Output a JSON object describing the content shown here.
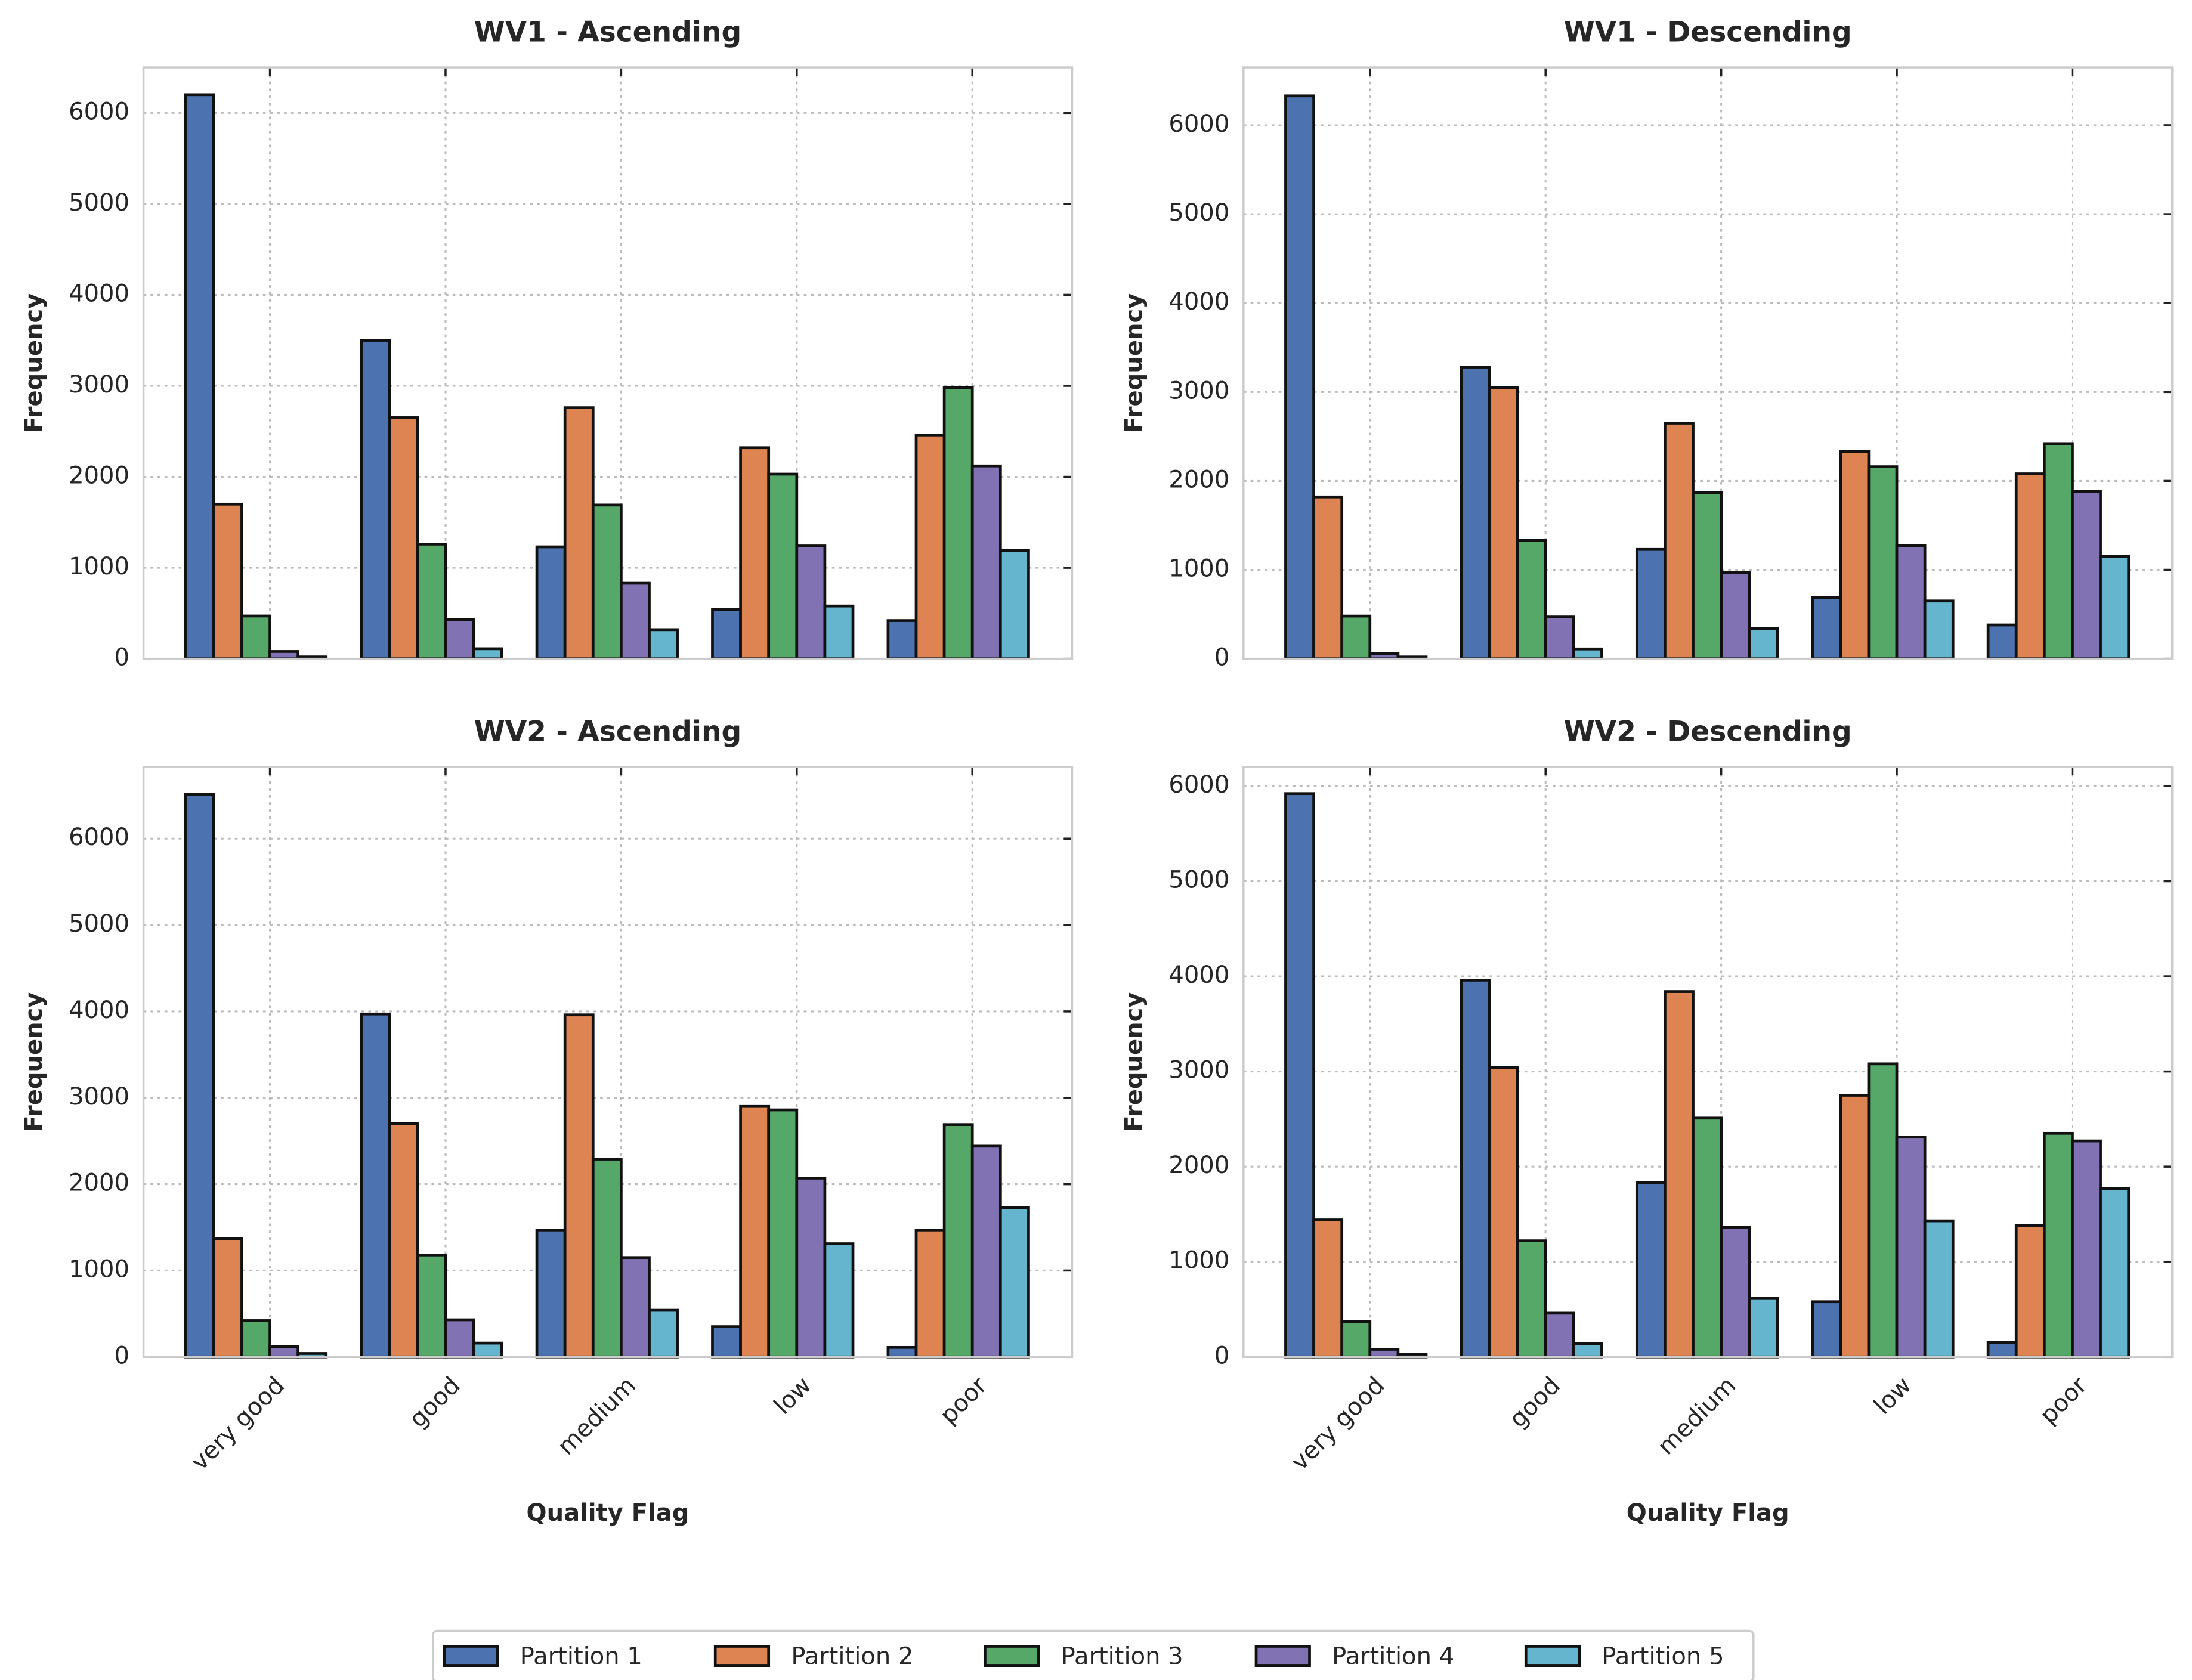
{
  "chart_data": [
    {
      "type": "bar",
      "title": "WV1 - Ascending",
      "y_label": "Frequency",
      "ylim": [
        0,
        6500
      ],
      "yticks": [
        0,
        1000,
        2000,
        3000,
        4000,
        5000,
        6000
      ],
      "grid": true,
      "series": [
        {
          "name": "Partition 1",
          "color": "#4c72b0",
          "values": [
            6200,
            3500,
            1230,
            540,
            420
          ]
        },
        {
          "name": "Partition 2",
          "color": "#dd8452",
          "values": [
            1700,
            2650,
            2760,
            2320,
            2460
          ]
        },
        {
          "name": "Partition 3",
          "color": "#55a868",
          "values": [
            470,
            1260,
            1690,
            2030,
            2980
          ]
        },
        {
          "name": "Partition 4",
          "color": "#8172b3",
          "values": [
            80,
            430,
            830,
            1240,
            2120
          ]
        },
        {
          "name": "Partition 5",
          "color": "#64b5cd",
          "values": [
            20,
            110,
            320,
            580,
            1190
          ]
        }
      ]
    },
    {
      "type": "bar",
      "title": "WV1 - Descending",
      "y_label": "Frequency",
      "ylim": [
        0,
        6650
      ],
      "yticks": [
        0,
        1000,
        2000,
        3000,
        4000,
        5000,
        6000
      ],
      "grid": true,
      "series": [
        {
          "name": "Partition 1",
          "color": "#4c72b0",
          "values": [
            6330,
            3280,
            1230,
            690,
            380
          ]
        },
        {
          "name": "Partition 2",
          "color": "#dd8452",
          "values": [
            1820,
            3050,
            2650,
            2330,
            2080
          ]
        },
        {
          "name": "Partition 3",
          "color": "#55a868",
          "values": [
            480,
            1330,
            1870,
            2160,
            2420
          ]
        },
        {
          "name": "Partition 4",
          "color": "#8172b3",
          "values": [
            60,
            470,
            970,
            1270,
            1880
          ]
        },
        {
          "name": "Partition 5",
          "color": "#64b5cd",
          "values": [
            20,
            110,
            340,
            650,
            1150
          ]
        }
      ]
    },
    {
      "type": "bar",
      "title": "WV2 - Ascending",
      "y_label": "Frequency",
      "x_label": "Quality Flag",
      "ylim": [
        0,
        6830
      ],
      "yticks": [
        0,
        1000,
        2000,
        3000,
        4000,
        5000,
        6000
      ],
      "grid": true,
      "categories": [
        "very good",
        "good",
        "medium",
        "low",
        "poor"
      ],
      "series": [
        {
          "name": "Partition 1",
          "color": "#4c72b0",
          "values": [
            6510,
            3970,
            1470,
            350,
            110
          ]
        },
        {
          "name": "Partition 2",
          "color": "#dd8452",
          "values": [
            1370,
            2700,
            3960,
            2900,
            1470
          ]
        },
        {
          "name": "Partition 3",
          "color": "#55a868",
          "values": [
            420,
            1180,
            2290,
            2860,
            2690
          ]
        },
        {
          "name": "Partition 4",
          "color": "#8172b3",
          "values": [
            120,
            430,
            1150,
            2070,
            2440
          ]
        },
        {
          "name": "Partition 5",
          "color": "#64b5cd",
          "values": [
            40,
            160,
            540,
            1310,
            1730
          ]
        }
      ]
    },
    {
      "type": "bar",
      "title": "WV2 - Descending",
      "y_label": "Frequency",
      "x_label": "Quality Flag",
      "ylim": [
        0,
        6200
      ],
      "yticks": [
        0,
        1000,
        2000,
        3000,
        4000,
        5000,
        6000
      ],
      "grid": true,
      "categories": [
        "very good",
        "good",
        "medium",
        "low",
        "poor"
      ],
      "series": [
        {
          "name": "Partition 1",
          "color": "#4c72b0",
          "values": [
            5920,
            3960,
            1830,
            580,
            150
          ]
        },
        {
          "name": "Partition 2",
          "color": "#dd8452",
          "values": [
            1440,
            3040,
            3840,
            2750,
            1380
          ]
        },
        {
          "name": "Partition 3",
          "color": "#55a868",
          "values": [
            370,
            1220,
            2510,
            3080,
            2350
          ]
        },
        {
          "name": "Partition 4",
          "color": "#8172b3",
          "values": [
            80,
            460,
            1360,
            2310,
            2270
          ]
        },
        {
          "name": "Partition 5",
          "color": "#64b5cd",
          "values": [
            30,
            140,
            620,
            1430,
            1770
          ]
        }
      ]
    }
  ]
}
